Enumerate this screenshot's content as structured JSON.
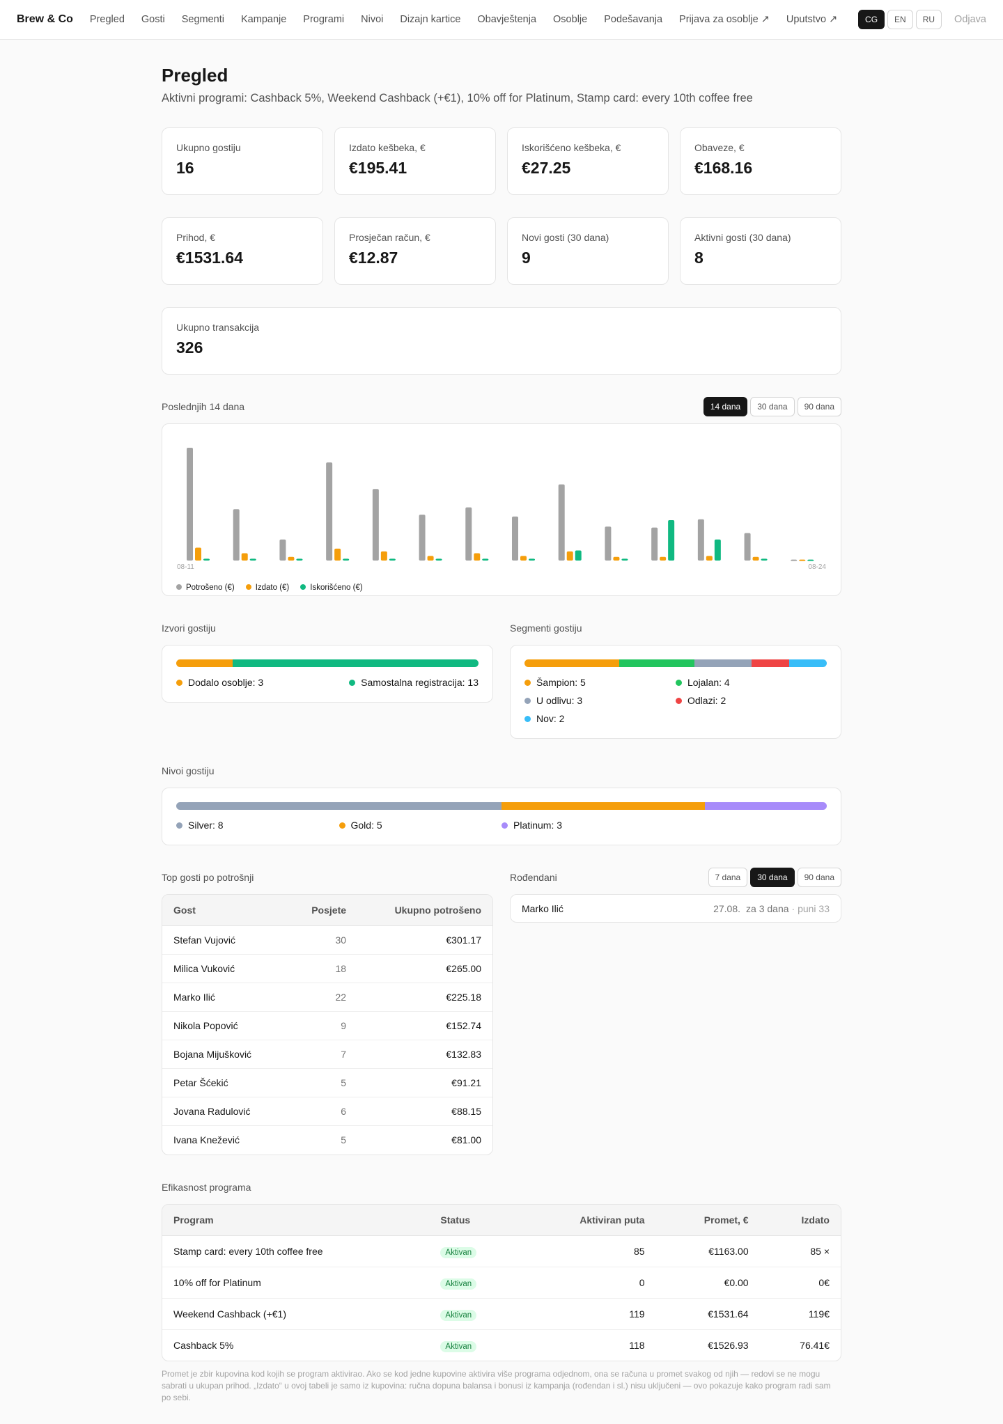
{
  "nav": {
    "brand": "Brew & Co",
    "links": [
      "Pregled",
      "Gosti",
      "Segmenti",
      "Kampanje",
      "Programi",
      "Nivoi",
      "Dizajn kartice",
      "Obavještenja",
      "Osoblje",
      "Podešavanja",
      "Prijava za osoblje ↗",
      "Uputstvo ↗"
    ],
    "languages": [
      "CG",
      "EN",
      "RU"
    ],
    "active_language": 0,
    "logout": "Odjava"
  },
  "header": {
    "title": "Pregled",
    "subtitle": "Aktivni programi: Cashback 5%, Weekend Cashback (+€1), 10% off for Platinum, Stamp card: every 10th coffee free"
  },
  "stats": [
    {
      "label": "Ukupno gostiju",
      "value": "16"
    },
    {
      "label": "Izdato kešbeka, €",
      "value": "€195.41"
    },
    {
      "label": "Iskorišćeno kešbeka, €",
      "value": "€27.25"
    },
    {
      "label": "Obaveze, €",
      "value": "€168.16"
    },
    {
      "label": "Prihod, €",
      "value": "€1531.64"
    },
    {
      "label": "Prosječan račun, €",
      "value": "€12.87"
    },
    {
      "label": "Novi gosti (30 dana)",
      "value": "9"
    },
    {
      "label": "Aktivni gosti (30 dana)",
      "value": "8"
    },
    {
      "label": "Ukupno transakcija",
      "value": "326"
    }
  ],
  "chart_section": {
    "title": "Poslednjih 14 dana",
    "ranges": [
      "14 dana",
      "30 dana",
      "90 dana"
    ],
    "active_range": 0
  },
  "chart_data": {
    "type": "bar",
    "categories": [
      "08-11",
      null,
      null,
      null,
      null,
      null,
      null,
      null,
      null,
      null,
      null,
      null,
      null,
      "08-24"
    ],
    "series": [
      {
        "name": "Potrošeno (€)",
        "color": "#a3a3a3",
        "values": [
          123,
          56,
          23,
          107,
          78,
          50,
          58,
          48,
          83,
          37,
          36,
          45,
          30,
          1
        ]
      },
      {
        "name": "Izdato (€)",
        "color": "#f59e0b",
        "values": [
          14,
          8,
          4,
          13,
          10,
          5,
          8,
          5,
          10,
          4,
          4,
          5,
          4,
          1
        ]
      },
      {
        "name": "Iskorišćeno (€)",
        "color": "#10b981",
        "values": [
          2,
          2,
          2,
          2,
          2,
          2,
          2,
          2,
          11,
          2,
          44,
          23,
          2,
          1
        ]
      }
    ]
  },
  "sources": {
    "title": "Izvori gostiju",
    "items": [
      {
        "label": "Dodalo osoblje: 3",
        "value": 3,
        "color": "#f59e0b"
      },
      {
        "label": "Samostalna registracija: 13",
        "value": 13,
        "color": "#10b981"
      }
    ]
  },
  "segments": {
    "title": "Segmenti gostiju",
    "items": [
      {
        "label": "Šampion: 5",
        "value": 5,
        "color": "#f59e0b"
      },
      {
        "label": "Lojalan: 4",
        "value": 4,
        "color": "#22c55e"
      },
      {
        "label": "U odlivu: 3",
        "value": 3,
        "color": "#94a3b8"
      },
      {
        "label": "Odlazi: 2",
        "value": 2,
        "color": "#ef4444"
      },
      {
        "label": "Nov: 2",
        "value": 2,
        "color": "#38bdf8"
      }
    ]
  },
  "tiers": {
    "title": "Nivoi gostiju",
    "items": [
      {
        "label": "Silver: 8",
        "value": 8,
        "color": "#94a3b8"
      },
      {
        "label": "Gold: 5",
        "value": 5,
        "color": "#f59e0b"
      },
      {
        "label": "Platinum: 3",
        "value": 3,
        "color": "#a78bfa"
      }
    ]
  },
  "top_guests": {
    "title": "Top gosti po potrošnji",
    "columns": [
      "Gost",
      "Posjete",
      "Ukupno potrošeno"
    ],
    "rows": [
      [
        "Stefan Vujović",
        30,
        "€301.17"
      ],
      [
        "Milica Vuković",
        18,
        "€265.00"
      ],
      [
        "Marko Ilić",
        22,
        "€225.18"
      ],
      [
        "Nikola Popović",
        9,
        "€152.74"
      ],
      [
        "Bojana Mijušković",
        7,
        "€132.83"
      ],
      [
        "Petar Šćekić",
        5,
        "€91.21"
      ],
      [
        "Jovana Radulović",
        6,
        "€88.15"
      ],
      [
        "Ivana Knežević",
        5,
        "€81.00"
      ]
    ]
  },
  "birthdays": {
    "title": "Rođendani",
    "ranges": [
      "7 dana",
      "30 dana",
      "90 dana"
    ],
    "active_range": 1,
    "entries": [
      {
        "name": "Marko Ilić",
        "date": "27.08.",
        "in": "za 3 dana",
        "age": "· puni 33"
      }
    ]
  },
  "programs": {
    "title": "Efikasnost programa",
    "columns": [
      "Program",
      "Status",
      "Aktiviran puta",
      "Promet, €",
      "Izdato"
    ],
    "rows": [
      [
        "Stamp card: every 10th coffee free",
        "Aktivan",
        85,
        "€1163.00",
        "85 ×"
      ],
      [
        "10% off for Platinum",
        "Aktivan",
        0,
        "€0.00",
        "0€"
      ],
      [
        "Weekend Cashback (+€1)",
        "Aktivan",
        119,
        "€1531.64",
        "119€"
      ],
      [
        "Cashback 5%",
        "Aktivan",
        118,
        "€1526.93",
        "76.41€"
      ]
    ],
    "note": "Promet je zbir kupovina kod kojih se program aktivirao. Ako se kod jedne kupovine aktivira više programa odjednom, ona se računa u promet svakog od njih — redovi se ne mogu sabrati u ukupan prihod. „Izdato“ u ovoj tabeli je samo iz kupovina: ručna dopuna balansa i bonusi iz kampanja (rođendan i sl.) nisu uključeni — ovo pokazuje kako program radi sam po sebi."
  }
}
